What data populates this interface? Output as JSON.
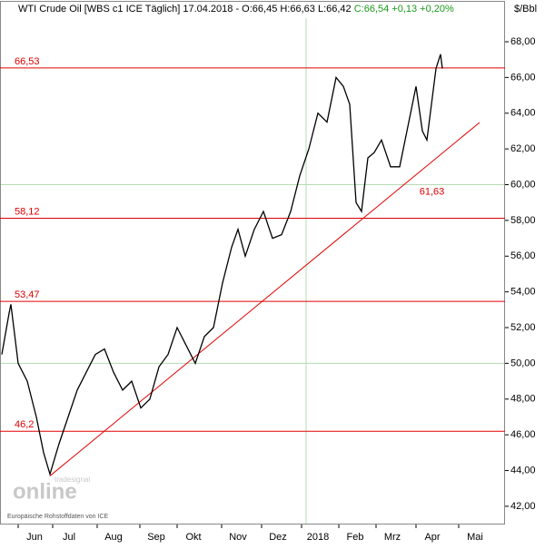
{
  "chart_data": {
    "type": "line",
    "title": "WTI Crude Oil [WBS c1 ICE  Täglich] 17.04.2018 - O:66,45 H:66,63 L:66,42 ",
    "close_text": "C:66,54 +0,13 +0,20%",
    "unit_label": "$/Bbl",
    "source": "Europäische Rohstoffdaten von ICE",
    "watermark": "online",
    "watermark_small": "tradesignal",
    "x": [
      0.2,
      1.0,
      1.2,
      2.0,
      3.0,
      4.0,
      4.8,
      5.5,
      6.5,
      7.5,
      8.5,
      9.5,
      10.5,
      11.5,
      12.5,
      13.5,
      14.5,
      15.5,
      16.5,
      17.5,
      18.5,
      19.5,
      20.5,
      21.5,
      22.5,
      23.5,
      24.5,
      25.5,
      26.2,
      27.0,
      28.0,
      29.0,
      30.0,
      31.0,
      32.0,
      33.0,
      34.0,
      35.0,
      36.0,
      37.0,
      37.8,
      38.5,
      39.2,
      39.8,
      40.5,
      41.2,
      42.0,
      43.0,
      44.0,
      45.0,
      45.8,
      46.5,
      47.0,
      47.5,
      48.0,
      48.5,
      48.7
    ],
    "series": [
      {
        "name": "WTI Crude Oil",
        "color": "#000000",
        "values": [
          50.5,
          52.8,
          53.3,
          50,
          49,
          47,
          45,
          43.8,
          45.5,
          47,
          48.5,
          49.5,
          50.5,
          50.8,
          49.5,
          48.5,
          49,
          47.5,
          48,
          49.8,
          50.5,
          52,
          51,
          50,
          51.5,
          52,
          54.5,
          56.5,
          57.5,
          56,
          57.5,
          58.5,
          57,
          57.2,
          58.5,
          60.5,
          62,
          64,
          63.5,
          66,
          65.5,
          64.5,
          59,
          58.5,
          61.5,
          61.8,
          62.5,
          61,
          61,
          63.5,
          65.5,
          63,
          62.5,
          64.5,
          66.5,
          67.3,
          66.5
        ]
      }
    ],
    "xlim": [
      0,
      55.6
    ],
    "xticks": [
      {
        "value": 3.8,
        "label": "Jun"
      },
      {
        "value": 7.6,
        "label": "Jul"
      },
      {
        "value": 12.5,
        "label": "Aug"
      },
      {
        "value": 17.2,
        "label": "Sep"
      },
      {
        "value": 21.3,
        "label": "Okt"
      },
      {
        "value": 26.2,
        "label": "Nov"
      },
      {
        "value": 30.6,
        "label": "Dez"
      },
      {
        "value": 35.0,
        "label": "2018"
      },
      {
        "value": 39.1,
        "label": "Feb"
      },
      {
        "value": 43.2,
        "label": "Mrz"
      },
      {
        "value": 47.6,
        "label": "Apr"
      },
      {
        "value": 52.3,
        "label": "Mai"
      }
    ],
    "ylim": [
      40.98,
      69.32
    ],
    "yticks": [
      {
        "value": 42,
        "label": "42,00"
      },
      {
        "value": 44,
        "label": "44,00"
      },
      {
        "value": 46,
        "label": "46,00"
      },
      {
        "value": 48,
        "label": "48,00"
      },
      {
        "value": 50,
        "label": "50,00"
      },
      {
        "value": 52,
        "label": "52,00"
      },
      {
        "value": 54,
        "label": "54,00"
      },
      {
        "value": 56,
        "label": "56,00"
      },
      {
        "value": 58,
        "label": "58,00"
      },
      {
        "value": 60,
        "label": "60,00"
      },
      {
        "value": 62,
        "label": "62,00"
      },
      {
        "value": 64,
        "label": "64,00"
      },
      {
        "value": 66,
        "label": "66,00"
      },
      {
        "value": 68,
        "label": "68,00"
      }
    ],
    "major_grid": [
      50,
      60
    ],
    "year_line": 33.7,
    "hlines": [
      {
        "value": 66.53,
        "label": "66,53"
      },
      {
        "value": 58.12,
        "label": "58,12"
      },
      {
        "value": 53.47,
        "label": "53,47"
      },
      {
        "value": 46.2,
        "label": "46,2"
      }
    ],
    "trendline": {
      "x": [
        5.5,
        52.8
      ],
      "y": [
        43.7,
        63.48
      ],
      "label": "61,63",
      "color": "#e00000"
    },
    "hline_color": "#e00000"
  }
}
